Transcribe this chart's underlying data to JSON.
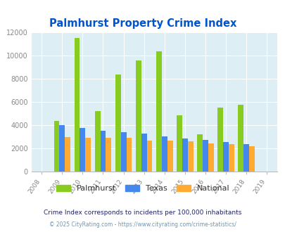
{
  "title": "Palmhurst Property Crime Index",
  "years": [
    2008,
    2009,
    2010,
    2011,
    2012,
    2013,
    2014,
    2015,
    2016,
    2017,
    2018,
    2019
  ],
  "palmhurst": [
    0,
    4350,
    11500,
    5200,
    8350,
    9600,
    10350,
    4850,
    3200,
    5500,
    5750,
    0
  ],
  "texas": [
    0,
    4000,
    3800,
    3500,
    3400,
    3300,
    3050,
    2850,
    2750,
    2550,
    2400,
    0
  ],
  "national": [
    0,
    3000,
    2950,
    2950,
    2900,
    2700,
    2650,
    2600,
    2450,
    2350,
    2200,
    0
  ],
  "ylim": [
    0,
    12000
  ],
  "yticks": [
    0,
    2000,
    4000,
    6000,
    8000,
    10000,
    12000
  ],
  "bar_width": 0.27,
  "colors": {
    "palmhurst": "#88cc22",
    "texas": "#4488ee",
    "national": "#ffaa33"
  },
  "bg_color": "#ddeef5",
  "legend_labels": [
    "Palmhurst",
    "Texas",
    "National"
  ],
  "footnote1": "Crime Index corresponds to incidents per 100,000 inhabitants",
  "footnote2": "© 2025 CityRating.com - https://www.cityrating.com/crime-statistics/",
  "title_color": "#0055cc",
  "footnote1_color": "#222266",
  "footnote2_color": "#6699bb"
}
